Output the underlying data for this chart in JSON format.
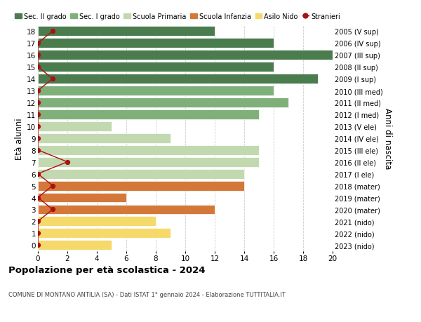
{
  "ages": [
    18,
    17,
    16,
    15,
    14,
    13,
    12,
    11,
    10,
    9,
    8,
    7,
    6,
    5,
    4,
    3,
    2,
    1,
    0
  ],
  "right_labels": [
    "2005 (V sup)",
    "2006 (IV sup)",
    "2007 (III sup)",
    "2008 (II sup)",
    "2009 (I sup)",
    "2010 (III med)",
    "2011 (II med)",
    "2012 (I med)",
    "2013 (V ele)",
    "2014 (IV ele)",
    "2015 (III ele)",
    "2016 (II ele)",
    "2017 (I ele)",
    "2018 (mater)",
    "2019 (mater)",
    "2020 (mater)",
    "2021 (nido)",
    "2022 (nido)",
    "2023 (nido)"
  ],
  "bar_values": [
    12,
    16,
    20,
    16,
    19,
    16,
    17,
    15,
    5,
    9,
    15,
    15,
    14,
    14,
    6,
    12,
    8,
    9,
    5
  ],
  "bar_colors": [
    "#4a7c4e",
    "#4a7c4e",
    "#4a7c4e",
    "#4a7c4e",
    "#4a7c4e",
    "#7fb07a",
    "#7fb07a",
    "#7fb07a",
    "#c2d9b0",
    "#c2d9b0",
    "#c2d9b0",
    "#c2d9b0",
    "#c2d9b0",
    "#d4783a",
    "#d4783a",
    "#d4783a",
    "#f5d96b",
    "#f5d96b",
    "#f5d96b"
  ],
  "stranieri_values": [
    1,
    0,
    0,
    0,
    1,
    0,
    0,
    0,
    0,
    0,
    0,
    2,
    0,
    1,
    0,
    1,
    0,
    0,
    0
  ],
  "legend_items": [
    {
      "label": "Sec. II grado",
      "color": "#4a7c4e"
    },
    {
      "label": "Sec. I grado",
      "color": "#7fb07a"
    },
    {
      "label": "Scuola Primaria",
      "color": "#c2d9b0"
    },
    {
      "label": "Scuola Infanzia",
      "color": "#d4783a"
    },
    {
      "label": "Asilo Nido",
      "color": "#f5d96b"
    },
    {
      "label": "Stranieri",
      "color": "#aa1111"
    }
  ],
  "ylabel_left": "Età alunni",
  "ylabel_right": "Anni di nascita",
  "title": "Popolazione per età scolastica - 2024",
  "subtitle": "COMUNE DI MONTANO ANTILIA (SA) - Dati ISTAT 1° gennaio 2024 - Elaborazione TUTTITALIA.IT",
  "xlim": [
    0,
    20
  ],
  "background_color": "#ffffff",
  "bar_height": 0.82,
  "grid_color": "#cccccc"
}
